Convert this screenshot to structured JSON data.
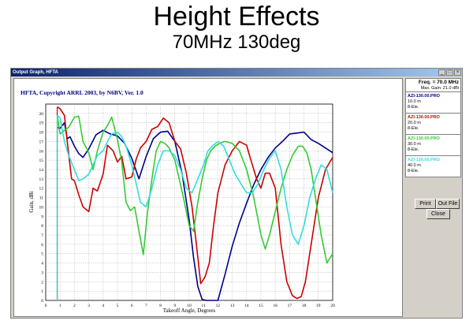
{
  "slide": {
    "title": "Height Effects",
    "subtitle": "70MHz 130deg"
  },
  "window": {
    "title": "Output Graph, HFTA"
  },
  "plot": {
    "header": "HFTA, Copyright ARRL 2003, by N6BV, Ver. 1.0"
  },
  "side": {
    "freq": "Freq. = 70.0 MHz",
    "max_gain": "Max. Gain: 21.0 dBi",
    "print_label": "Print",
    "outfile_label": "Out File",
    "close_label": "Close"
  },
  "legend": [
    {
      "name": "AZI-130.00.PRO",
      "line1": "10.0 m",
      "line2": "8-Ele.",
      "color": "#00008b"
    },
    {
      "name": "AZI-130.00.PRO",
      "line1": "20.0 m",
      "line2": "8-Ele.",
      "color": "#cc0000"
    },
    {
      "name": "AZI-130.00.PRO",
      "line1": "30.0 m",
      "line2": "8-Ele.",
      "color": "#33cc33"
    },
    {
      "name": "AZI-130.00.PRO",
      "line1": "40.0 m",
      "line2": "8-Ele.",
      "color": "#33dddd"
    }
  ],
  "chart_data": {
    "type": "line",
    "title": "",
    "xlabel": "Takeoff Angle, Degrees",
    "ylabel": "Gain, dBi",
    "xlim": [
      0,
      20
    ],
    "ylim": [
      0,
      21
    ],
    "xticks": [
      "0",
      "1",
      "2",
      "3",
      "4",
      "5",
      "6",
      "7",
      "8",
      "9",
      "10",
      "11",
      "12",
      "13",
      "14",
      "15",
      "16",
      "17",
      "18",
      "19",
      "20"
    ],
    "yticks": [
      "0",
      "1",
      "2",
      "3",
      "4",
      "5",
      "6",
      "7",
      "8",
      "9",
      "10",
      "11",
      "12",
      "13",
      "14",
      "15",
      "16",
      "17",
      "18",
      "19",
      "20"
    ],
    "grid": true,
    "series": [
      {
        "name": "AZI-130.00.PRO",
        "color": "#00008b",
        "x": [
          0.8,
          1,
          1.3,
          1.5,
          1.7,
          2,
          2.3,
          2.6,
          3,
          3.5,
          4,
          4.5,
          5,
          5.5,
          6,
          6.5,
          7,
          7.5,
          8,
          8.5,
          9,
          9.5,
          10,
          10.3,
          10.6,
          10.9,
          11.2,
          11.6,
          12,
          12.5,
          13,
          13.5,
          14,
          14.5,
          15,
          15.5,
          16,
          16.5,
          17,
          17.5,
          18,
          18.5,
          19,
          19.5,
          20
        ],
        "y": [
          18.5,
          18.4,
          19.0,
          17.3,
          17.5,
          16.5,
          15.7,
          15.3,
          16.2,
          17.7,
          18.2,
          17.8,
          17.6,
          16.8,
          15.2,
          13.0,
          15.4,
          17.3,
          18.0,
          18.1,
          17.0,
          13.6,
          8.6,
          4.6,
          1.5,
          0.1,
          0.0,
          0.0,
          0.0,
          2.8,
          5.8,
          8.3,
          10.4,
          12.4,
          14.0,
          15.3,
          16.3,
          17.0,
          17.8,
          17.9,
          18.0,
          17.2,
          16.8,
          16.3,
          15.8
        ]
      },
      {
        "name": "AZI-130.00.PRO",
        "color": "#cc0000",
        "x": [
          0.8,
          1,
          1.3,
          1.5,
          1.8,
          2,
          2.3,
          2.6,
          3,
          3.3,
          3.6,
          4,
          4.3,
          4.7,
          5,
          5.3,
          5.6,
          6,
          6.3,
          6.6,
          7,
          7.4,
          7.8,
          8.2,
          8.6,
          9,
          9.4,
          9.8,
          10.2,
          10.5,
          10.8,
          11.1,
          11.4,
          11.7,
          12,
          12.5,
          13,
          13.5,
          14,
          14.3,
          14.7,
          15,
          15.3,
          15.6,
          16,
          16.4,
          16.8,
          17.2,
          17.5,
          17.8,
          18.1,
          18.5,
          19,
          19.5,
          20
        ],
        "y": [
          20.7,
          20.5,
          19.8,
          17.0,
          13.0,
          12.8,
          11.3,
          10.0,
          9.5,
          12.0,
          11.7,
          13.5,
          16.6,
          16.0,
          14.8,
          15.4,
          13.0,
          13.2,
          15.1,
          16.3,
          17.0,
          18.3,
          18.6,
          19.5,
          19.0,
          17.0,
          16.2,
          13.6,
          10.0,
          6.0,
          1.8,
          2.5,
          4.0,
          8.0,
          11.5,
          14.5,
          16.0,
          17.0,
          16.6,
          15.0,
          13.0,
          12.0,
          13.6,
          13.6,
          12.0,
          6.0,
          2.0,
          0.5,
          0.2,
          0.4,
          2.0,
          6.0,
          11.0,
          14.0,
          15.3
        ]
      },
      {
        "name": "AZI-130.00.PRO",
        "color": "#33cc33",
        "x": [
          0.8,
          1,
          1.3,
          1.6,
          2,
          2.3,
          2.6,
          3,
          3.3,
          3.6,
          4,
          4.3,
          4.6,
          5,
          5.3,
          5.6,
          5.9,
          6.2,
          6.5,
          6.8,
          7.1,
          7.4,
          7.7,
          8,
          8.3,
          8.6,
          9,
          9.3,
          9.6,
          10,
          10.3,
          10.6,
          10.9,
          11.2,
          11.5,
          11.8,
          12.1,
          12.5,
          13,
          13.5,
          14,
          14.5,
          15,
          15.3,
          15.6,
          16,
          16.4,
          16.8,
          17.2,
          17.6,
          17.9,
          18.2,
          18.5,
          18.8,
          19.2,
          19.6,
          20
        ],
        "y": [
          19.8,
          17.8,
          18.2,
          18.5,
          19.6,
          19.7,
          17.0,
          15.8,
          14.0,
          16.0,
          18.0,
          18.7,
          19.6,
          17.2,
          14.8,
          10.5,
          9.6,
          10.0,
          7.4,
          4.9,
          9.5,
          13.0,
          16.0,
          17.0,
          16.8,
          16.3,
          15.0,
          13.0,
          11.0,
          8.0,
          7.4,
          10.5,
          13.0,
          15.0,
          16.0,
          16.5,
          16.8,
          17.0,
          16.8,
          16.0,
          14.0,
          11.0,
          7.0,
          5.5,
          7.0,
          9.5,
          12.0,
          14.0,
          15.5,
          16.5,
          16.5,
          15.8,
          14.0,
          11.0,
          7.0,
          4.0,
          5.0
        ]
      },
      {
        "name": "AZI-130.00.PRO",
        "color": "#33dddd",
        "x": [
          0.8,
          1,
          1.3,
          1.6,
          2,
          2.3,
          2.6,
          3,
          3.3,
          3.6,
          4,
          4.3,
          4.6,
          5,
          5.3,
          5.6,
          6,
          6.3,
          6.6,
          7,
          7.4,
          7.8,
          8.2,
          8.6,
          9,
          9.4,
          9.8,
          10.2,
          10.6,
          11,
          11.3,
          11.6,
          12,
          12.4,
          12.8,
          13.2,
          13.6,
          14,
          14.4,
          14.8,
          15.2,
          15.6,
          16,
          16.4,
          16.8,
          17.2,
          17.6,
          18,
          18.4,
          18.8,
          19.2,
          19.6,
          20
        ],
        "y": [
          19.8,
          19.5,
          17.0,
          15.5,
          14.0,
          12.8,
          13.0,
          13.5,
          14.5,
          15.5,
          16.0,
          17.0,
          17.8,
          18.0,
          17.5,
          16.5,
          14.5,
          12.5,
          10.5,
          10.0,
          12.0,
          14.5,
          16.0,
          16.0,
          15.5,
          14.0,
          12.0,
          11.5,
          13.0,
          14.5,
          16.0,
          16.5,
          17.0,
          16.5,
          15.0,
          13.5,
          12.5,
          11.5,
          11.5,
          12.5,
          14.0,
          15.2,
          16.0,
          14.0,
          10.0,
          7.0,
          6.0,
          8.0,
          11.0,
          13.0,
          14.5,
          14.0,
          11.5
        ]
      }
    ]
  }
}
